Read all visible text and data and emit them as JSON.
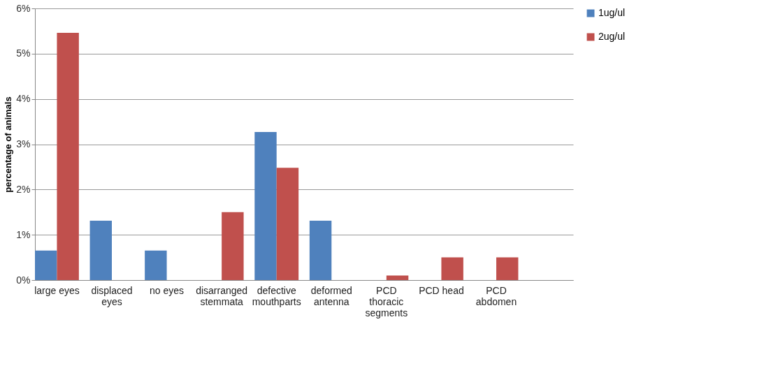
{
  "chart_data": {
    "type": "bar",
    "ylabel": "percentage of animals",
    "categories": [
      "large eyes",
      "displaced eyes",
      "no eyes",
      "disarranged stemmata",
      "defective mouthparts",
      "deformed antenna",
      "PCD thoracic segments",
      "PCD head",
      "PCD abdomen",
      null
    ],
    "series": [
      {
        "name": "1ug/ul",
        "color": "#4f81bd",
        "values": [
          0.65,
          1.31,
          0.65,
          null,
          3.27,
          1.31,
          null,
          null,
          null,
          null
        ]
      },
      {
        "name": "2ug/ul",
        "color": "#c0504d",
        "values": [
          5.46,
          null,
          null,
          1.5,
          2.48,
          null,
          0.1,
          0.5,
          0.5,
          null
        ]
      }
    ],
    "ylim": [
      0,
      6
    ],
    "yticks": [
      {
        "value": 0,
        "label": "0%"
      },
      {
        "value": 1,
        "label": "1%"
      },
      {
        "value": 2,
        "label": "2%"
      },
      {
        "value": 3,
        "label": "3%"
      },
      {
        "value": 4,
        "label": "4%"
      },
      {
        "value": 5,
        "label": "5%"
      },
      {
        "value": 6,
        "label": "6%"
      }
    ],
    "grid": "y",
    "legend": "right"
  }
}
